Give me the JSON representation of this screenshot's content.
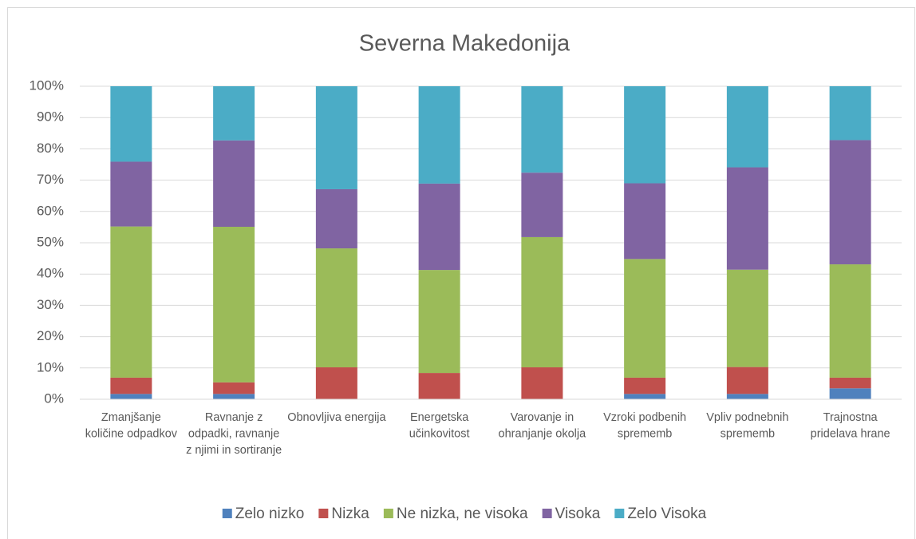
{
  "chart_data": {
    "type": "stacked_bar",
    "title": "Severna Makedonija",
    "categories": [
      "Zmanjšanje količine odpadkov",
      "Ravnanje z odpadki, ravnanje z njimi in sortiranje",
      "Obnovljiva energija",
      "Energetska učinkovitost",
      "Varovanje in ohranjanje okolja",
      "Vzroki podbenih sprememb",
      "Vpliv podnebnih sprememb",
      "Trajnostna pridelava hrane"
    ],
    "series": [
      {
        "name": "Zelo nizko",
        "color": "#4f81bd",
        "values": [
          1.7,
          1.7,
          0,
          0,
          0,
          1.7,
          1.7,
          3.5
        ]
      },
      {
        "name": "Nizka",
        "color": "#c0504d",
        "values": [
          5.2,
          3.7,
          10.2,
          8.4,
          10.2,
          5.2,
          8.6,
          3.4
        ]
      },
      {
        "name": "Ne nizka, ne visoka",
        "color": "#9bbb59",
        "values": [
          48.3,
          49.7,
          38.0,
          32.9,
          41.6,
          37.9,
          31.1,
          36.2
        ]
      },
      {
        "name": "Visoka",
        "color": "#8064a2",
        "values": [
          20.7,
          27.6,
          18.9,
          27.6,
          20.6,
          24.2,
          32.7,
          39.7
        ]
      },
      {
        "name": "Zelo Visoka",
        "color": "#4bacc6",
        "values": [
          24.1,
          17.3,
          32.9,
          31.1,
          27.6,
          31.0,
          25.9,
          17.2
        ]
      }
    ],
    "ylim": [
      0,
      100
    ],
    "yticks": [
      {
        "value": 0,
        "label": "0%"
      },
      {
        "value": 10,
        "label": "10%"
      },
      {
        "value": 20,
        "label": "20%"
      },
      {
        "value": 30,
        "label": "30%"
      },
      {
        "value": 40,
        "label": "40%"
      },
      {
        "value": 50,
        "label": "50%"
      },
      {
        "value": 60,
        "label": "60%"
      },
      {
        "value": 70,
        "label": "70%"
      },
      {
        "value": 80,
        "label": "80%"
      },
      {
        "value": 90,
        "label": "90%"
      },
      {
        "value": 100,
        "label": "100%"
      }
    ],
    "grid": true,
    "legend": "bottom"
  }
}
